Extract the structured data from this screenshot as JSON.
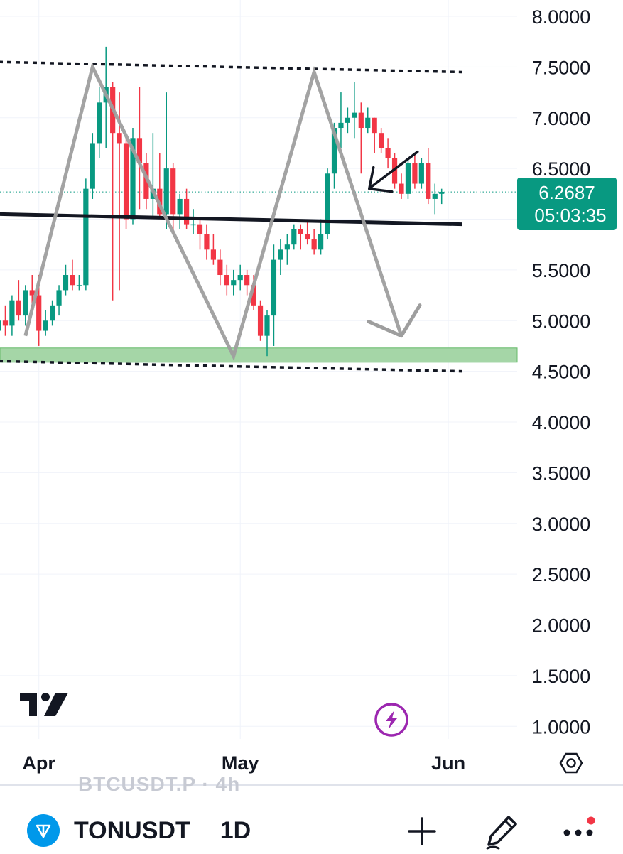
{
  "chart_data": {
    "type": "candlestick",
    "y_ticks": [
      "8.0000",
      "7.5000",
      "7.0000",
      "6.5000",
      "6.0000",
      "5.5000",
      "5.0000",
      "4.5000",
      "4.0000",
      "3.5000",
      "3.0000",
      "2.5000",
      "2.0000",
      "1.5000",
      "1.0000"
    ],
    "x_ticks": [
      "Apr",
      "May",
      "Jun"
    ],
    "ylim": [
      0.75,
      8.3
    ],
    "grid": true,
    "current_price": "6.2687",
    "countdown": "05:03:35",
    "up_color": "#089981",
    "down_color": "#f23645",
    "candles": [
      [
        4.9,
        5.1,
        4.8,
        5.0
      ],
      [
        5.0,
        5.15,
        4.85,
        4.95
      ],
      [
        4.95,
        5.25,
        4.85,
        5.2
      ],
      [
        5.2,
        5.4,
        5.0,
        5.05
      ],
      [
        5.05,
        5.35,
        4.95,
        5.3
      ],
      [
        5.3,
        5.45,
        5.1,
        5.25
      ],
      [
        5.25,
        5.45,
        4.75,
        4.9
      ],
      [
        4.9,
        5.1,
        4.85,
        5.0
      ],
      [
        5.0,
        5.2,
        4.95,
        5.15
      ],
      [
        5.15,
        5.35,
        5.05,
        5.3
      ],
      [
        5.3,
        5.55,
        5.25,
        5.45
      ],
      [
        5.45,
        5.6,
        5.3,
        5.35
      ],
      [
        5.35,
        5.45,
        5.3,
        5.35
      ],
      [
        5.35,
        6.4,
        5.3,
        6.3
      ],
      [
        6.3,
        6.85,
        6.2,
        6.75
      ],
      [
        6.75,
        7.3,
        6.6,
        7.15
      ],
      [
        7.15,
        7.7,
        6.7,
        7.3
      ],
      [
        7.3,
        7.35,
        5.2,
        6.85
      ],
      [
        6.85,
        7.25,
        5.3,
        6.75
      ],
      [
        6.75,
        6.8,
        5.9,
        6.0
      ],
      [
        6.0,
        6.9,
        5.95,
        6.8
      ],
      [
        6.8,
        7.3,
        6.1,
        6.55
      ],
      [
        6.55,
        6.65,
        6.1,
        6.2
      ],
      [
        6.2,
        6.85,
        6.0,
        6.3
      ],
      [
        6.3,
        6.65,
        6.0,
        6.05
      ],
      [
        6.05,
        7.25,
        5.9,
        6.5
      ],
      [
        6.5,
        6.55,
        5.85,
        6.05
      ],
      [
        6.05,
        6.25,
        5.9,
        6.2
      ],
      [
        6.2,
        6.3,
        5.9,
        5.95
      ],
      [
        5.95,
        6.1,
        5.85,
        5.95
      ],
      [
        5.95,
        6.0,
        5.7,
        5.85
      ],
      [
        5.85,
        5.95,
        5.6,
        5.7
      ],
      [
        5.7,
        5.85,
        5.55,
        5.6
      ],
      [
        5.6,
        5.7,
        5.35,
        5.45
      ],
      [
        5.45,
        5.55,
        5.25,
        5.35
      ],
      [
        5.35,
        5.5,
        5.25,
        5.4
      ],
      [
        5.4,
        5.55,
        5.3,
        5.45
      ],
      [
        5.45,
        5.5,
        5.25,
        5.35
      ],
      [
        5.35,
        5.45,
        5.1,
        5.15
      ],
      [
        5.15,
        5.2,
        4.8,
        4.85
      ],
      [
        4.85,
        5.1,
        4.65,
        5.05
      ],
      [
        5.05,
        5.75,
        4.75,
        5.6
      ],
      [
        5.6,
        5.8,
        5.45,
        5.7
      ],
      [
        5.7,
        5.85,
        5.55,
        5.75
      ],
      [
        5.75,
        5.95,
        5.7,
        5.9
      ],
      [
        5.9,
        5.95,
        5.7,
        5.85
      ],
      [
        5.85,
        6.0,
        5.75,
        5.8
      ],
      [
        5.8,
        5.9,
        5.65,
        5.7
      ],
      [
        5.7,
        6.0,
        5.65,
        5.85
      ],
      [
        5.85,
        6.5,
        5.8,
        6.45
      ],
      [
        6.45,
        6.95,
        6.3,
        6.9
      ],
      [
        6.9,
        7.25,
        6.7,
        6.95
      ],
      [
        6.95,
        7.1,
        6.85,
        7.0
      ],
      [
        7.0,
        7.35,
        6.8,
        7.05
      ],
      [
        7.05,
        7.15,
        6.45,
        6.9
      ],
      [
        6.9,
        7.1,
        6.85,
        7.0
      ],
      [
        7.0,
        7.0,
        6.65,
        6.85
      ],
      [
        6.85,
        6.9,
        6.65,
        6.7
      ],
      [
        6.7,
        6.8,
        6.5,
        6.6
      ],
      [
        6.6,
        6.65,
        6.3,
        6.35
      ],
      [
        6.35,
        6.45,
        6.2,
        6.25
      ],
      [
        6.25,
        6.6,
        6.2,
        6.55
      ],
      [
        6.55,
        6.65,
        6.3,
        6.35
      ],
      [
        6.35,
        6.6,
        6.3,
        6.55
      ],
      [
        6.55,
        6.7,
        6.15,
        6.2
      ],
      [
        6.2,
        6.35,
        6.05,
        6.25
      ],
      [
        6.25,
        6.3,
        6.15,
        6.27
      ]
    ],
    "annotations": [
      {
        "type": "resistance",
        "from": [
          "2024-03-26",
          7.55
        ],
        "to": [
          "2024-06-03",
          7.45
        ],
        "style": "dotted"
      },
      {
        "type": "support",
        "from": [
          "2024-03-26",
          4.6
        ],
        "to": [
          "2024-06-03",
          4.5
        ],
        "style": "dotted"
      },
      {
        "type": "neckline",
        "from": [
          "2024-03-26",
          6.05
        ],
        "to": [
          "2024-06-03",
          5.95
        ],
        "style": "solid"
      },
      {
        "type": "zone",
        "from_price": 4.59,
        "to_price": 4.73,
        "color": "#a5d6a7"
      },
      {
        "type": "zigzag",
        "points": [
          [
            "2024-03-30",
            4.85
          ],
          [
            "2024-04-09",
            7.5
          ],
          [
            "2024-04-30",
            4.65
          ],
          [
            "2024-05-12",
            7.45
          ],
          [
            "2024-05-25",
            4.85
          ]
        ]
      },
      {
        "type": "pointer-arrow",
        "at": [
          "2024-05-20",
          6.3
        ]
      }
    ]
  },
  "header": {
    "symbol": "TONUSDT",
    "interval": "1D",
    "ghost_title": "BTCUSDT.P · 4h"
  },
  "icons": {
    "logo": "tradingview-logo",
    "replay": "lightning-icon",
    "settings": "settings-hexagon-icon",
    "add": "plus-icon",
    "draw": "pencil-icon",
    "more": "more-dots-icon"
  }
}
